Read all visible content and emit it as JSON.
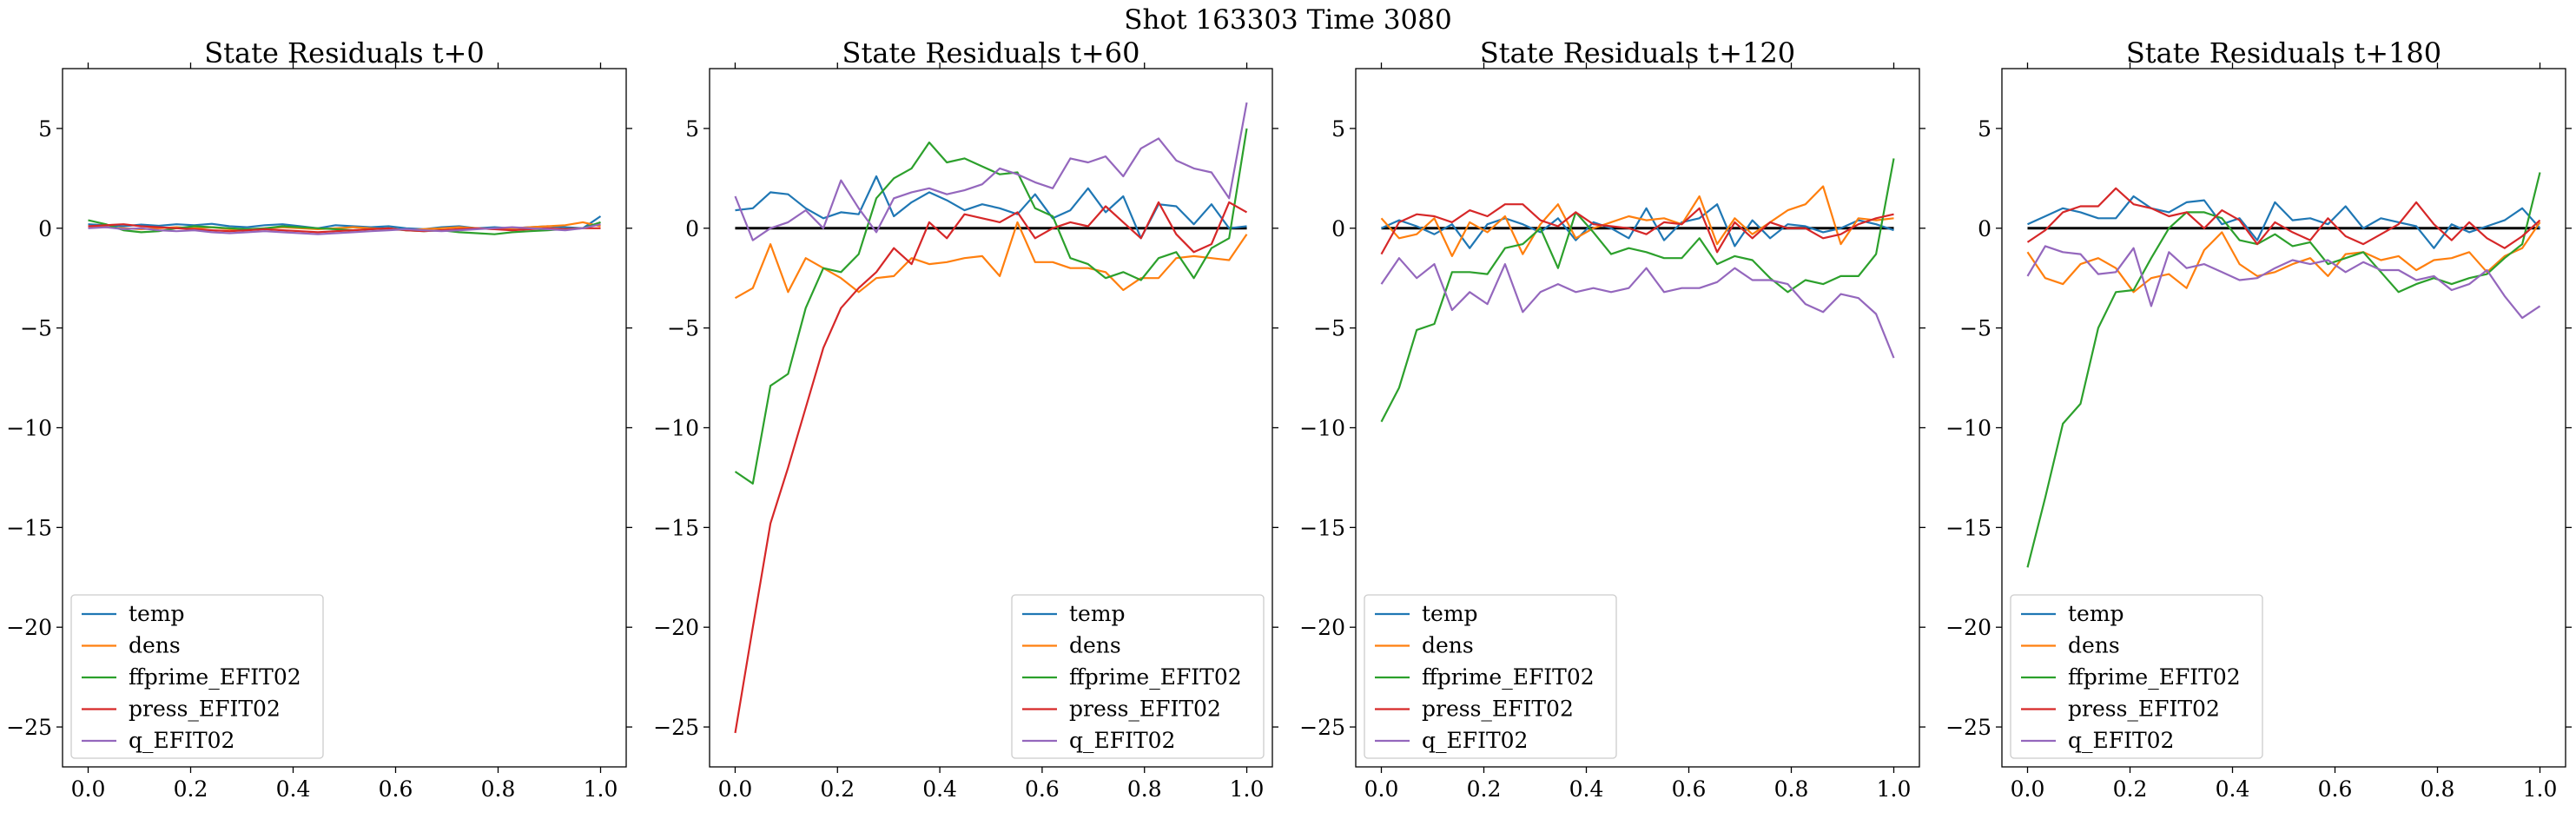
{
  "figure": {
    "title": "Shot 163303   Time 3080"
  },
  "colors": {
    "temp": "#1f77b4",
    "dens": "#ff7f0e",
    "ffprime_EFIT02": "#2ca02c",
    "press_EFIT02": "#d62728",
    "q_EFIT02": "#9467bd",
    "zero_line": "#000000"
  },
  "chart_data": [
    {
      "type": "line",
      "title": "State Residuals t+0",
      "xlim": [
        -0.05,
        1.05
      ],
      "ylim": [
        -27,
        8
      ],
      "xticks": [
        "0.0",
        "0.2",
        "0.4",
        "0.6",
        "0.8",
        "1.0"
      ],
      "yticks": [
        "5",
        "0",
        "−5",
        "−10",
        "−15",
        "−20",
        "−25"
      ],
      "grid": false,
      "legend_position": "lower-left",
      "zero_line": false,
      "x": [
        0.0,
        0.0345,
        0.069,
        0.1034,
        0.1379,
        0.1724,
        0.2069,
        0.2414,
        0.2759,
        0.3103,
        0.3448,
        0.3793,
        0.4138,
        0.4483,
        0.4828,
        0.5172,
        0.5517,
        0.5862,
        0.6207,
        0.6552,
        0.6897,
        0.7241,
        0.7586,
        0.7931,
        0.8276,
        0.8621,
        0.8966,
        0.931,
        0.9655,
        1.0
      ],
      "series": [
        {
          "name": "temp",
          "values": [
            0.2,
            0.15,
            0.1,
            0.18,
            0.12,
            0.2,
            0.15,
            0.22,
            0.1,
            0.05,
            0.15,
            0.2,
            0.1,
            0.0,
            0.15,
            0.1,
            0.05,
            0.1,
            0.0,
            -0.05,
            0.05,
            0.1,
            0.0,
            0.05,
            0.0,
            0.05,
            0.1,
            0.05,
            0.0,
            0.6
          ]
        },
        {
          "name": "dens",
          "values": [
            0.1,
            0.05,
            0.0,
            -0.05,
            0.0,
            0.05,
            0.0,
            0.05,
            -0.05,
            -0.1,
            0.0,
            0.05,
            0.0,
            -0.05,
            0.0,
            0.05,
            0.0,
            -0.05,
            -0.1,
            -0.05,
            0.0,
            0.05,
            0.0,
            -0.05,
            0.0,
            0.05,
            0.1,
            0.15,
            0.3,
            0.1
          ]
        },
        {
          "name": "ffprime_EFIT02",
          "values": [
            0.4,
            0.2,
            -0.1,
            -0.2,
            -0.15,
            0.0,
            0.1,
            0.05,
            0.0,
            -0.05,
            0.0,
            0.1,
            0.05,
            0.0,
            -0.05,
            -0.1,
            -0.05,
            0.0,
            -0.1,
            -0.15,
            -0.1,
            -0.2,
            -0.25,
            -0.3,
            -0.2,
            -0.15,
            -0.1,
            -0.05,
            0.0,
            0.3
          ]
        },
        {
          "name": "press_EFIT02",
          "values": [
            0.1,
            0.15,
            0.2,
            0.1,
            0.05,
            0.0,
            -0.05,
            -0.1,
            -0.15,
            -0.1,
            -0.05,
            -0.1,
            -0.15,
            -0.2,
            -0.15,
            -0.1,
            -0.05,
            0.0,
            -0.1,
            -0.15,
            -0.1,
            -0.05,
            0.0,
            -0.05,
            -0.1,
            -0.05,
            0.0,
            -0.05,
            0.0,
            0.0
          ]
        },
        {
          "name": "q_EFIT02",
          "values": [
            0.0,
            0.05,
            -0.05,
            0.0,
            -0.1,
            -0.15,
            -0.1,
            -0.2,
            -0.25,
            -0.2,
            -0.15,
            -0.2,
            -0.25,
            -0.3,
            -0.25,
            -0.2,
            -0.15,
            -0.1,
            -0.05,
            -0.1,
            -0.15,
            -0.1,
            -0.05,
            0.0,
            0.05,
            0.0,
            -0.05,
            -0.1,
            0.0,
            0.2
          ]
        }
      ]
    },
    {
      "type": "line",
      "title": "State Residuals t+60",
      "xlim": [
        -0.05,
        1.05
      ],
      "ylim": [
        -27,
        8
      ],
      "xticks": [
        "0.0",
        "0.2",
        "0.4",
        "0.6",
        "0.8",
        "1.0"
      ],
      "yticks": [
        "5",
        "0",
        "−5",
        "−10",
        "−15",
        "−20",
        "−25"
      ],
      "grid": false,
      "legend_position": "lower-right",
      "zero_line": true,
      "x": [
        0.0,
        0.0345,
        0.069,
        0.1034,
        0.1379,
        0.1724,
        0.2069,
        0.2414,
        0.2759,
        0.3103,
        0.3448,
        0.3793,
        0.4138,
        0.4483,
        0.4828,
        0.5172,
        0.5517,
        0.5862,
        0.6207,
        0.6552,
        0.6897,
        0.7241,
        0.7586,
        0.7931,
        0.8276,
        0.8621,
        0.8966,
        0.931,
        0.9655,
        1.0
      ],
      "series": [
        {
          "name": "temp",
          "values": [
            0.9,
            1.0,
            1.8,
            1.7,
            1.0,
            0.5,
            0.8,
            0.7,
            2.6,
            0.6,
            1.3,
            1.8,
            1.4,
            0.9,
            1.2,
            1.0,
            0.7,
            1.7,
            0.5,
            0.9,
            2.0,
            0.8,
            1.6,
            -0.5,
            1.2,
            1.1,
            0.2,
            1.2,
            0.0,
            0.1
          ]
        },
        {
          "name": "dens",
          "values": [
            -3.5,
            -3.0,
            -0.8,
            -3.2,
            -1.5,
            -2.0,
            -2.5,
            -3.2,
            -2.5,
            -2.4,
            -1.5,
            -1.8,
            -1.7,
            -1.5,
            -1.4,
            -2.4,
            0.3,
            -1.7,
            -1.7,
            -2.0,
            -2.0,
            -2.2,
            -3.1,
            -2.5,
            -2.5,
            -1.5,
            -1.4,
            -1.5,
            -1.6,
            -0.3
          ]
        },
        {
          "name": "ffprime_EFIT02",
          "values": [
            -12.2,
            -12.8,
            -7.9,
            -7.3,
            -4.0,
            -2.0,
            -2.2,
            -1.3,
            1.5,
            2.5,
            3.0,
            4.3,
            3.3,
            3.5,
            3.1,
            2.7,
            2.8,
            1.0,
            0.6,
            -1.5,
            -1.8,
            -2.5,
            -2.2,
            -2.6,
            -1.5,
            -1.2,
            -2.5,
            -1.0,
            -0.5,
            5.0
          ]
        },
        {
          "name": "press_EFIT02",
          "values": [
            -25.3,
            -20.0,
            -14.8,
            -12.0,
            -9.0,
            -6.0,
            -4.0,
            -3.0,
            -2.2,
            -1.0,
            -1.8,
            0.3,
            -0.5,
            0.7,
            0.5,
            0.3,
            0.8,
            -0.5,
            0.0,
            0.3,
            0.1,
            1.1,
            0.3,
            -0.5,
            1.3,
            -0.3,
            -1.2,
            -0.8,
            1.3,
            0.8
          ]
        },
        {
          "name": "q_EFIT02",
          "values": [
            1.6,
            -0.6,
            0.0,
            0.3,
            0.9,
            0.0,
            2.4,
            1.0,
            -0.2,
            1.5,
            1.8,
            2.0,
            1.7,
            1.9,
            2.2,
            3.0,
            2.7,
            2.3,
            2.0,
            3.5,
            3.3,
            3.6,
            2.6,
            4.0,
            4.5,
            3.4,
            3.0,
            2.8,
            1.5,
            6.3
          ]
        }
      ]
    },
    {
      "type": "line",
      "title": "State Residuals t+120",
      "xlim": [
        -0.05,
        1.05
      ],
      "ylim": [
        -27,
        8
      ],
      "xticks": [
        "0.0",
        "0.2",
        "0.4",
        "0.6",
        "0.8",
        "1.0"
      ],
      "yticks": [
        "5",
        "0",
        "−5",
        "−10",
        "−15",
        "−20",
        "−25"
      ],
      "grid": false,
      "legend_position": "lower-left",
      "zero_line": true,
      "x": [
        0.0,
        0.0345,
        0.069,
        0.1034,
        0.1379,
        0.1724,
        0.2069,
        0.2414,
        0.2759,
        0.3103,
        0.3448,
        0.3793,
        0.4138,
        0.4483,
        0.4828,
        0.5172,
        0.5517,
        0.5862,
        0.6207,
        0.6552,
        0.6897,
        0.7241,
        0.7586,
        0.7931,
        0.8276,
        0.8621,
        0.8966,
        0.931,
        0.9655,
        1.0
      ],
      "series": [
        {
          "name": "temp",
          "values": [
            0.0,
            0.4,
            0.1,
            -0.3,
            0.2,
            -1.0,
            0.2,
            0.5,
            0.2,
            -0.2,
            0.5,
            -0.6,
            0.3,
            0.0,
            -0.5,
            1.0,
            -0.6,
            0.3,
            0.5,
            1.2,
            -0.9,
            0.4,
            -0.5,
            0.2,
            0.1,
            -0.2,
            0.0,
            0.4,
            0.2,
            -0.1
          ]
        },
        {
          "name": "dens",
          "values": [
            0.5,
            -0.5,
            -0.3,
            0.5,
            -1.4,
            0.3,
            -0.2,
            0.6,
            -1.3,
            0.2,
            1.2,
            -0.5,
            0.0,
            0.3,
            0.6,
            0.4,
            0.5,
            0.2,
            1.6,
            -0.8,
            0.5,
            -0.3,
            0.3,
            0.9,
            1.2,
            2.1,
            -0.8,
            0.5,
            0.4,
            0.5
          ]
        },
        {
          "name": "ffprime_EFIT02",
          "values": [
            -9.7,
            -8.0,
            -5.1,
            -4.8,
            -2.2,
            -2.2,
            -2.3,
            -1.0,
            -0.8,
            0.0,
            -2.0,
            0.8,
            -0.2,
            -1.3,
            -1.0,
            -1.2,
            -1.5,
            -1.5,
            -0.5,
            -1.8,
            -1.4,
            -1.6,
            -2.5,
            -3.2,
            -2.6,
            -2.8,
            -2.4,
            -2.4,
            -1.3,
            3.5
          ]
        },
        {
          "name": "press_EFIT02",
          "values": [
            -1.3,
            0.3,
            0.7,
            0.6,
            0.3,
            0.9,
            0.6,
            1.2,
            1.2,
            0.4,
            0.1,
            0.8,
            0.2,
            0.1,
            0.0,
            -0.3,
            0.3,
            0.2,
            1.0,
            -1.2,
            0.3,
            -0.5,
            0.3,
            0.0,
            0.0,
            -0.5,
            -0.3,
            0.2,
            0.5,
            0.7
          ]
        },
        {
          "name": "q_EFIT02",
          "values": [
            -2.8,
            -1.5,
            -2.5,
            -1.8,
            -4.1,
            -3.2,
            -3.8,
            -1.8,
            -4.2,
            -3.2,
            -2.8,
            -3.2,
            -3.0,
            -3.2,
            -3.0,
            -2.0,
            -3.2,
            -3.0,
            -3.0,
            -2.7,
            -2.0,
            -2.6,
            -2.6,
            -2.8,
            -3.8,
            -4.2,
            -3.3,
            -3.5,
            -4.3,
            -6.5
          ]
        }
      ]
    },
    {
      "type": "line",
      "title": "State Residuals t+180",
      "xlim": [
        -0.05,
        1.05
      ],
      "ylim": [
        -27,
        8
      ],
      "xticks": [
        "0.0",
        "0.2",
        "0.4",
        "0.6",
        "0.8",
        "1.0"
      ],
      "yticks": [
        "5",
        "0",
        "−5",
        "−10",
        "−15",
        "−20",
        "−25"
      ],
      "grid": false,
      "legend_position": "lower-left",
      "zero_line": true,
      "x": [
        0.0,
        0.0345,
        0.069,
        0.1034,
        0.1379,
        0.1724,
        0.2069,
        0.2414,
        0.2759,
        0.3103,
        0.3448,
        0.3793,
        0.4138,
        0.4483,
        0.4828,
        0.5172,
        0.5517,
        0.5862,
        0.6207,
        0.6552,
        0.6897,
        0.7241,
        0.7586,
        0.7931,
        0.8276,
        0.8621,
        0.8966,
        0.931,
        0.9655,
        1.0
      ],
      "series": [
        {
          "name": "temp",
          "values": [
            0.2,
            0.6,
            1.0,
            0.8,
            0.5,
            0.5,
            1.6,
            1.0,
            0.8,
            1.3,
            1.4,
            0.2,
            0.5,
            -0.6,
            1.3,
            0.4,
            0.5,
            0.2,
            1.1,
            0.0,
            0.5,
            0.3,
            0.1,
            -1.0,
            0.2,
            -0.2,
            0.1,
            0.4,
            1.0,
            0.0
          ]
        },
        {
          "name": "dens",
          "values": [
            -1.2,
            -2.5,
            -2.8,
            -1.8,
            -1.5,
            -2.0,
            -3.2,
            -2.5,
            -2.3,
            -3.0,
            -1.1,
            -0.2,
            -1.8,
            -2.4,
            -2.2,
            -1.8,
            -1.5,
            -2.4,
            -1.3,
            -1.2,
            -1.6,
            -1.4,
            -2.1,
            -1.6,
            -1.5,
            -1.2,
            -2.2,
            -1.4,
            -1.0,
            0.3
          ]
        },
        {
          "name": "ffprime_EFIT02",
          "values": [
            -17.0,
            -13.5,
            -9.8,
            -8.8,
            -5.0,
            -3.2,
            -3.1,
            -1.5,
            0.0,
            0.8,
            0.8,
            0.5,
            -0.6,
            -0.8,
            -0.3,
            -0.9,
            -0.7,
            -1.8,
            -1.5,
            -1.2,
            -2.2,
            -3.2,
            -2.8,
            -2.5,
            -2.8,
            -2.5,
            -2.3,
            -1.5,
            -0.8,
            2.8
          ]
        },
        {
          "name": "press_EFIT02",
          "values": [
            -0.7,
            -0.1,
            0.8,
            1.1,
            1.1,
            2.0,
            1.2,
            1.0,
            0.6,
            0.8,
            0.0,
            0.9,
            0.4,
            -0.8,
            0.3,
            -0.2,
            -0.6,
            0.5,
            -0.4,
            -0.8,
            -0.3,
            0.2,
            1.3,
            0.2,
            -0.6,
            0.3,
            -0.5,
            -1.0,
            -0.4,
            0.4
          ]
        },
        {
          "name": "q_EFIT02",
          "values": [
            -2.4,
            -0.9,
            -1.2,
            -1.3,
            -2.3,
            -2.2,
            -1.0,
            -3.9,
            -1.2,
            -2.0,
            -1.8,
            -2.2,
            -2.6,
            -2.5,
            -2.0,
            -1.6,
            -1.8,
            -1.6,
            -2.2,
            -1.7,
            -2.1,
            -2.1,
            -2.6,
            -2.4,
            -3.1,
            -2.8,
            -2.1,
            -3.4,
            -4.5,
            -3.9
          ]
        }
      ]
    }
  ]
}
